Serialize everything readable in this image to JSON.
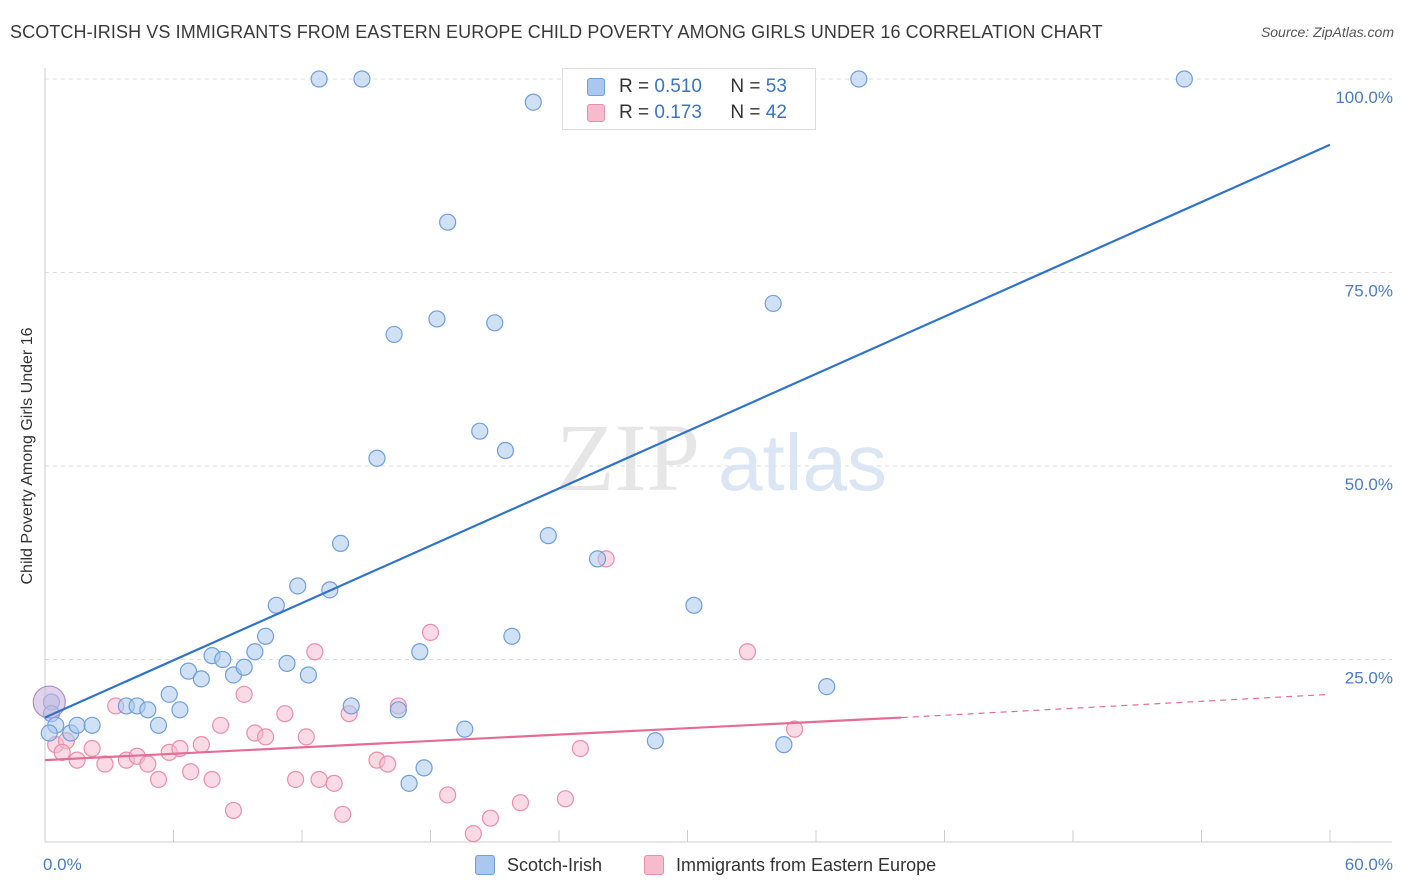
{
  "header": {
    "title": "SCOTCH-IRISH VS IMMIGRANTS FROM EASTERN EUROPE CHILD POVERTY AMONG GIRLS UNDER 16 CORRELATION CHART",
    "source": "Source: ZipAtlas.com"
  },
  "watermark": {
    "zip": "ZIP",
    "atlas": "atlas"
  },
  "legend_top": {
    "rows": [
      {
        "r_label": "R =",
        "r_value": "0.510",
        "n_label": "N =",
        "n_value": "53"
      },
      {
        "r_label": "R =",
        "r_value": "0.173",
        "n_label": "N =",
        "n_value": "42"
      }
    ]
  },
  "legend_bottom": {
    "items": [
      {
        "label": "Scotch-Irish"
      },
      {
        "label": "Immigrants from Eastern Europe"
      }
    ]
  },
  "colors": {
    "blue_fill": "#aac8ef",
    "blue_stroke": "#6f9fdc",
    "blue_line": "#2f73cc",
    "pink_fill": "#f6bccd",
    "pink_stroke": "#eb8eaa",
    "pink_line": "#e56d95"
  },
  "chart_data": {
    "type": "scatter",
    "title": "SCOTCH-IRISH VS IMMIGRANTS FROM EASTERN EUROPE CHILD POVERTY AMONG GIRLS UNDER 16 CORRELATION CHART",
    "xlabel": "",
    "ylabel": "Child Poverty Among Girls Under 16",
    "xlim": [
      0,
      60
    ],
    "ylim": [
      0,
      100
    ],
    "x_tick_labels": [
      "0.0%",
      "60.0%"
    ],
    "y_ticks": [
      25,
      50,
      75,
      100
    ],
    "y_tick_labels": [
      "25.0%",
      "50.0%",
      "75.0%",
      "100.0%"
    ],
    "grid": true,
    "series": [
      {
        "name": "Scotch-Irish",
        "points": [
          [
            0.3,
            19.5
          ],
          [
            0.3,
            18.0
          ],
          [
            0.5,
            16.5
          ],
          [
            1.2,
            15.5
          ],
          [
            1.5,
            16.5
          ],
          [
            2.2,
            16.5
          ],
          [
            3.8,
            19.0
          ],
          [
            4.3,
            19.0
          ],
          [
            4.8,
            18.5
          ],
          [
            5.3,
            16.5
          ],
          [
            5.8,
            20.5
          ],
          [
            6.3,
            18.5
          ],
          [
            6.7,
            23.5
          ],
          [
            7.3,
            22.5
          ],
          [
            7.8,
            25.5
          ],
          [
            8.3,
            25.0
          ],
          [
            8.8,
            23.0
          ],
          [
            9.3,
            24.0
          ],
          [
            9.8,
            26.0
          ],
          [
            10.3,
            28.0
          ],
          [
            10.8,
            32.0
          ],
          [
            11.3,
            24.5
          ],
          [
            11.8,
            34.5
          ],
          [
            12.3,
            23.0
          ],
          [
            13.3,
            34.0
          ],
          [
            13.8,
            40.0
          ],
          [
            14.3,
            19.0
          ],
          [
            14.8,
            100.0
          ],
          [
            15.5,
            51.0
          ],
          [
            16.3,
            67.0
          ],
          [
            16.5,
            18.5
          ],
          [
            17.0,
            9.0
          ],
          [
            17.5,
            26.0
          ],
          [
            17.7,
            11.0
          ],
          [
            18.3,
            69.0
          ],
          [
            18.8,
            81.5
          ],
          [
            19.6,
            16.0
          ],
          [
            20.3,
            54.5
          ],
          [
            21.0,
            68.5
          ],
          [
            21.5,
            52.0
          ],
          [
            21.8,
            28.0
          ],
          [
            22.8,
            97.0
          ],
          [
            23.5,
            41.0
          ],
          [
            25.8,
            38.0
          ],
          [
            28.5,
            14.5
          ],
          [
            30.3,
            32.0
          ],
          [
            34.0,
            71.0
          ],
          [
            34.5,
            14.0
          ],
          [
            36.5,
            21.5
          ],
          [
            38.0,
            100.0
          ],
          [
            53.2,
            100.0
          ],
          [
            12.8,
            100.0
          ],
          [
            0.2,
            15.5
          ]
        ],
        "trend": {
          "x": [
            0,
            60
          ],
          "y": [
            17.5,
            91.5
          ]
        }
      },
      {
        "name": "Immigrants from Eastern Europe",
        "points": [
          [
            0.5,
            14.0
          ],
          [
            1.0,
            14.5
          ],
          [
            1.5,
            12.0
          ],
          [
            2.2,
            13.5
          ],
          [
            2.8,
            11.5
          ],
          [
            3.3,
            19.0
          ],
          [
            3.8,
            12.0
          ],
          [
            4.3,
            12.5
          ],
          [
            4.8,
            11.5
          ],
          [
            5.3,
            9.5
          ],
          [
            5.8,
            13.0
          ],
          [
            6.3,
            13.5
          ],
          [
            6.8,
            10.5
          ],
          [
            7.3,
            14.0
          ],
          [
            7.8,
            9.5
          ],
          [
            8.2,
            16.5
          ],
          [
            8.8,
            5.5
          ],
          [
            9.3,
            20.5
          ],
          [
            9.8,
            15.5
          ],
          [
            10.3,
            15.0
          ],
          [
            11.2,
            18.0
          ],
          [
            11.7,
            9.5
          ],
          [
            12.2,
            15.0
          ],
          [
            12.8,
            9.5
          ],
          [
            12.6,
            26.0
          ],
          [
            13.5,
            9.0
          ],
          [
            13.9,
            5.0
          ],
          [
            14.2,
            18.0
          ],
          [
            15.5,
            12.0
          ],
          [
            16.0,
            11.5
          ],
          [
            16.5,
            19.0
          ],
          [
            18.0,
            28.5
          ],
          [
            18.8,
            7.5
          ],
          [
            20.0,
            2.5
          ],
          [
            20.8,
            4.5
          ],
          [
            22.2,
            6.5
          ],
          [
            24.3,
            7.0
          ],
          [
            25.0,
            13.5
          ],
          [
            26.2,
            38.0
          ],
          [
            32.8,
            26.0
          ],
          [
            35.0,
            16.0
          ],
          [
            0.8,
            13.0
          ]
        ],
        "trend": {
          "x": [
            0,
            40
          ],
          "y": [
            12.0,
            17.5
          ]
        },
        "trend_dashed": {
          "x": [
            40,
            60
          ],
          "y": [
            17.5,
            20.5
          ]
        }
      }
    ]
  }
}
